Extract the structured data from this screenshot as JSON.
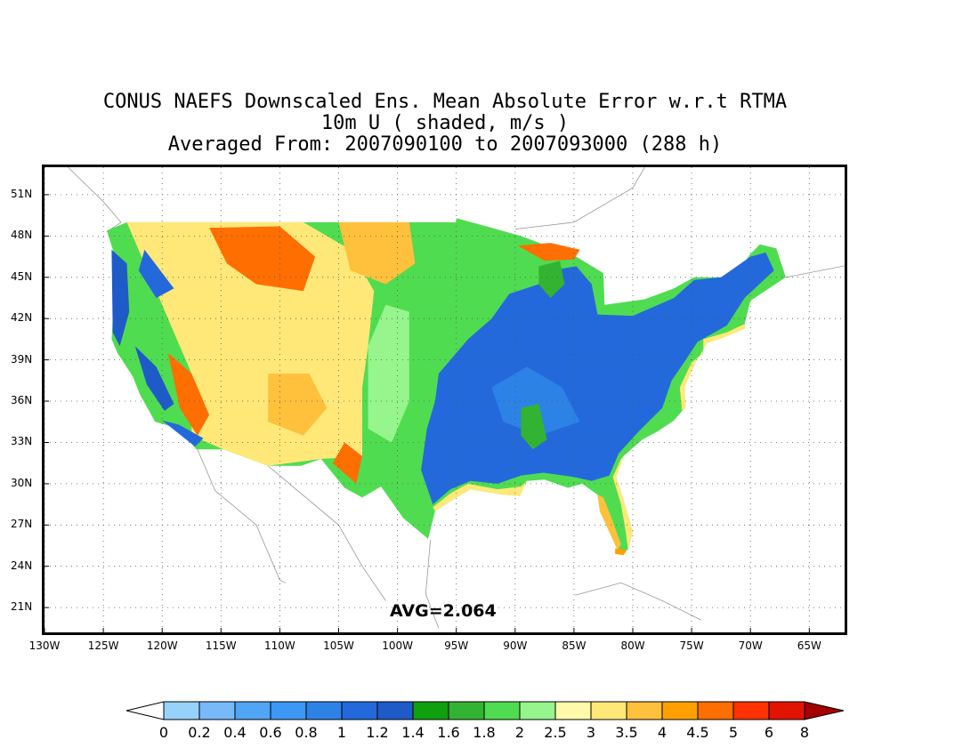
{
  "title": {
    "line1": "CONUS NAEFS Downscaled Ens. Mean Absolute Error w.r.t RTMA",
    "line2": "10m U ( shaded, m/s )",
    "line3": "Averaged From: 2007090100 to 2007093000 (288 h)"
  },
  "avg_label": "AVG=2.064",
  "map": {
    "projection": "lat-lon",
    "lon_range": [
      -130,
      -62
    ],
    "lat_range": [
      19.2,
      53
    ],
    "grid": "dotted",
    "lat_ticks": [
      "51N",
      "48N",
      "45N",
      "42N",
      "39N",
      "36N",
      "33N",
      "30N",
      "27N",
      "24N",
      "21N"
    ],
    "lat_values": [
      51,
      48,
      45,
      42,
      39,
      36,
      33,
      30,
      27,
      24,
      21
    ],
    "lon_ticks": [
      "130W",
      "125W",
      "120W",
      "115W",
      "110W",
      "105W",
      "100W",
      "95W",
      "90W",
      "85W",
      "80W",
      "75W",
      "70W",
      "65W"
    ],
    "lon_values": [
      -130,
      -125,
      -120,
      -115,
      -110,
      -105,
      -100,
      -95,
      -90,
      -85,
      -80,
      -75,
      -70,
      -65
    ]
  },
  "colorbar": {
    "labels": [
      "0",
      "0.2",
      "0.4",
      "0.6",
      "0.8",
      "1",
      "1.2",
      "1.4",
      "1.6",
      "1.8",
      "2",
      "2.5",
      "3",
      "3.5",
      "4",
      "4.5",
      "5",
      "6",
      "8"
    ],
    "colors": [
      "#ffffff",
      "#96d2fa",
      "#78b9fa",
      "#50a5f5",
      "#3c97f5",
      "#2d82e6",
      "#2369dc",
      "#1e5ac8",
      "#0fa00f",
      "#32b432",
      "#50dc50",
      "#96f58c",
      "#fffaaa",
      "#ffe878",
      "#ffc03c",
      "#ffa000",
      "#ff6e00",
      "#ff3200",
      "#e11400",
      "#a50000"
    ]
  }
}
